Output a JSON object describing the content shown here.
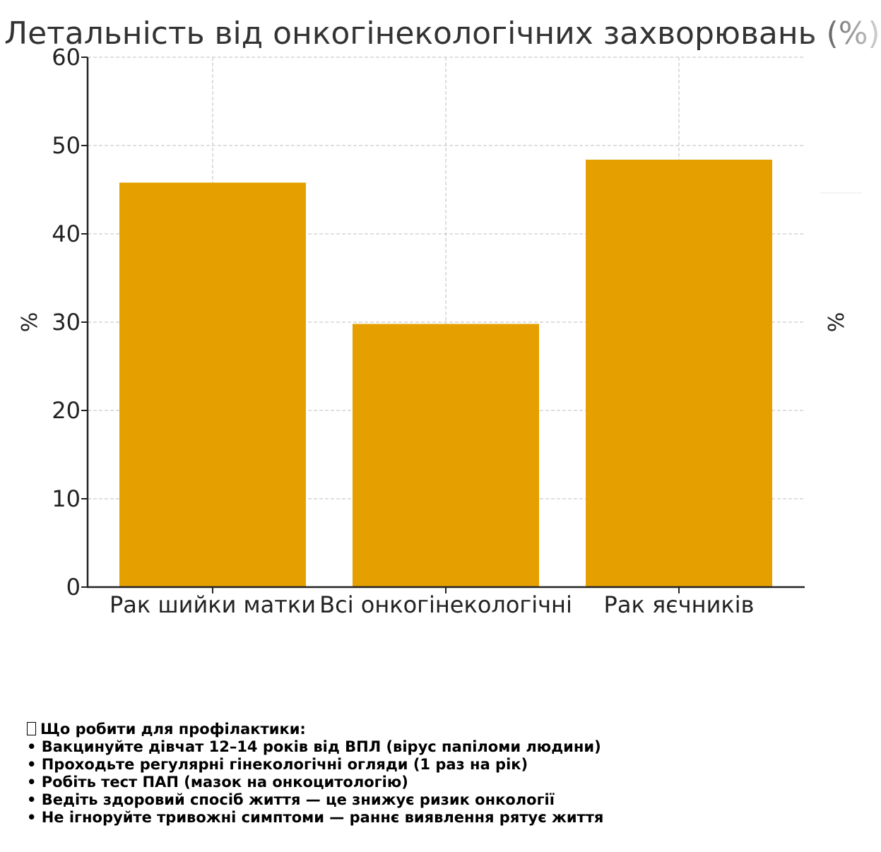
{
  "chart_data": {
    "type": "bar",
    "title": "Летальність від онкогінекологічних захворювань (%)",
    "categories": [
      "Рак шийки матки",
      "Всі онкогінекологічні",
      "Рак яєчників"
    ],
    "values": [
      45.8,
      29.8,
      48.4
    ],
    "ylabel": "%",
    "xlabel": "",
    "ylim": [
      0,
      60
    ],
    "yticks": [
      0,
      10,
      20,
      30,
      40,
      50,
      60
    ],
    "grid": true,
    "legend": "none",
    "bar_color": "#E5A000",
    "right_axis_label": "%"
  },
  "tips": {
    "icon": "lightbulb-icon",
    "heading": "Що робити для профілактики:",
    "items": [
      "• Вакцинуйте дівчат 12–14 років від ВПЛ (вірус папіломи людини)",
      "• Проходьте регулярні гінекологічні огляди (1 раз на рік)",
      "• Робіть тест ПАП (мазок на онкоцитологію)",
      "• Ведіть здоровий спосіб життя — це знижує ризик онкології",
      "• Не ігноруйте тривожні симптоми — раннє виявлення рятує життя"
    ]
  }
}
